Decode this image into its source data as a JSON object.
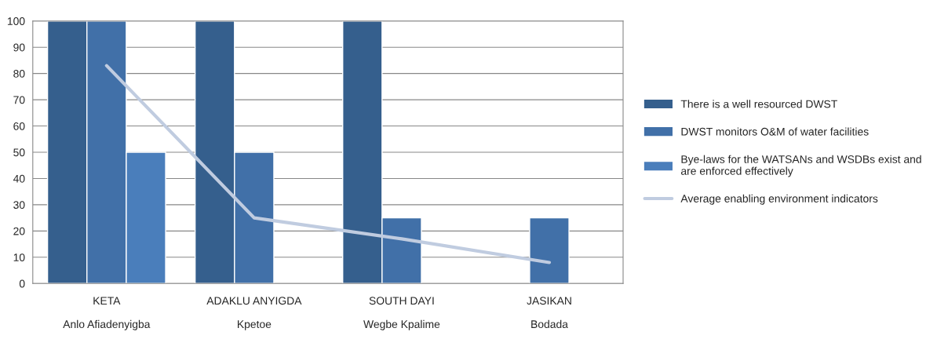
{
  "chart_data": {
    "type": "bar",
    "categories": [
      "KETA\n\nAnlo Afiadenyigba",
      "ADAKLU ANYIGDA\n\nKpetoe",
      "SOUTH DAYI\n\nWegbe Kpalime",
      "JASIKAN\n\nBodada"
    ],
    "series": [
      {
        "name": "There is a well resourced DWST",
        "color": "#355f8d",
        "values": [
          100,
          100,
          100,
          null
        ]
      },
      {
        "name": "DWST monitors O&M of water facilities",
        "color": "#4170a8",
        "values": [
          100,
          50,
          25,
          25
        ]
      },
      {
        "name": "Bye-laws for the WATSANs and WSDBs exist and\nare enforced effectively",
        "color": "#4a7ebb",
        "values": [
          50,
          null,
          null,
          null
        ]
      },
      {
        "name": "Average enabling environment indicators",
        "type": "line",
        "color": "#c0cce0",
        "values": [
          83,
          25,
          17,
          8
        ]
      }
    ],
    "ylim": [
      0,
      100
    ],
    "yticks": [
      0,
      10,
      20,
      30,
      40,
      50,
      60,
      70,
      80,
      90,
      100
    ],
    "grid": "y",
    "legend": "right",
    "marker": "none",
    "line_style": "solid"
  }
}
